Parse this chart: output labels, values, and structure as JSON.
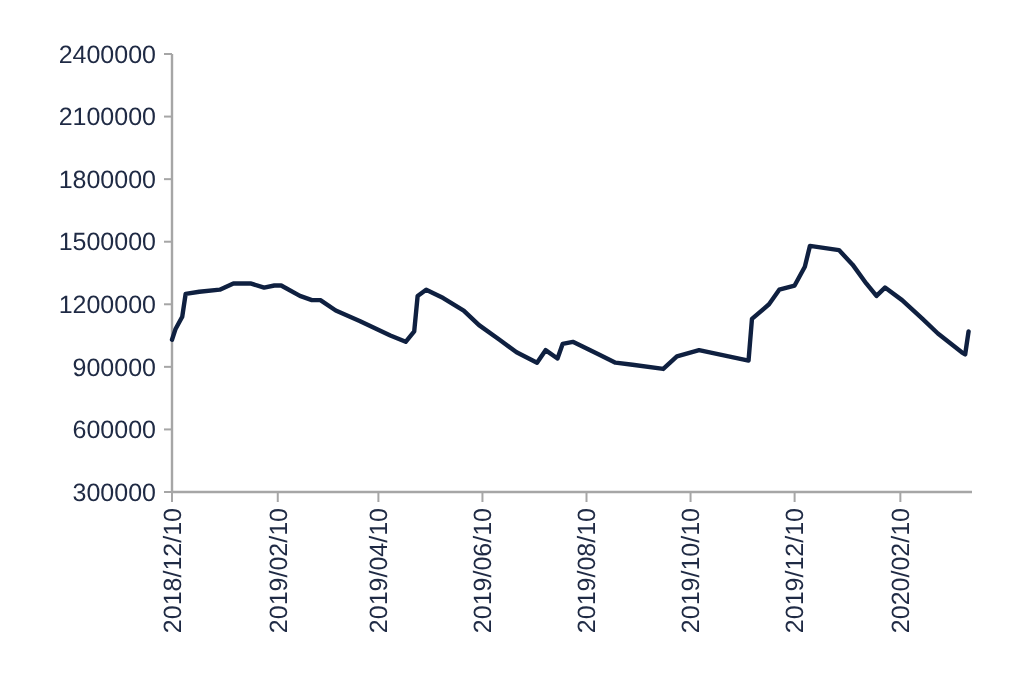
{
  "chart_data": {
    "type": "line",
    "color": "#0f2040",
    "x": [
      "2018-12-10",
      "2018-12-12",
      "2018-12-16",
      "2018-12-18",
      "2018-12-26",
      "2019-01-07",
      "2019-01-15",
      "2019-01-25",
      "2019-02-02",
      "2019-02-08",
      "2019-02-12",
      "2019-02-23",
      "2019-03-02",
      "2019-03-07",
      "2019-03-16",
      "2019-03-30",
      "2019-04-17",
      "2019-04-26",
      "2019-05-01",
      "2019-05-03",
      "2019-05-08",
      "2019-05-18",
      "2019-05-30",
      "2019-06-08",
      "2019-06-20",
      "2019-06-30",
      "2019-07-12",
      "2019-07-17",
      "2019-07-24",
      "2019-07-27",
      "2019-08-02",
      "2019-08-17",
      "2019-08-27",
      "2019-09-06",
      "2019-09-24",
      "2019-10-02",
      "2019-10-15",
      "2019-11-13",
      "2019-11-15",
      "2019-11-25",
      "2019-12-01",
      "2019-12-10",
      "2019-12-16",
      "2019-12-19",
      "2020-01-05",
      "2020-01-13",
      "2020-01-21",
      "2020-01-27",
      "2020-02-01",
      "2020-02-11",
      "2020-02-23",
      "2020-03-03",
      "2020-03-17",
      "2020-03-19",
      "2020-03-21"
    ],
    "values": [
      1030000,
      1080000,
      1140000,
      1250000,
      1260000,
      1270000,
      1300000,
      1300000,
      1280000,
      1290000,
      1290000,
      1240000,
      1220000,
      1220000,
      1170000,
      1120000,
      1050000,
      1020000,
      1070000,
      1240000,
      1270000,
      1230000,
      1170000,
      1100000,
      1030000,
      970000,
      920000,
      980000,
      940000,
      1010000,
      1020000,
      960000,
      920000,
      910000,
      890000,
      950000,
      980000,
      930000,
      1130000,
      1200000,
      1270000,
      1290000,
      1380000,
      1480000,
      1460000,
      1390000,
      1300000,
      1240000,
      1280000,
      1220000,
      1130000,
      1060000,
      970000,
      960000,
      1070000
    ],
    "xlim": [
      "2018-12-10",
      "2020-03-23"
    ],
    "xticks": [
      {
        "value": "2018-12-10",
        "label": "2018/12/10"
      },
      {
        "value": "2019-02-10",
        "label": "2019/02/10"
      },
      {
        "value": "2019-04-10",
        "label": "2019/04/10"
      },
      {
        "value": "2019-06-10",
        "label": "2019/06/10"
      },
      {
        "value": "2019-08-10",
        "label": "2019/08/10"
      },
      {
        "value": "2019-10-10",
        "label": "2019/10/10"
      },
      {
        "value": "2019-12-10",
        "label": "2019/12/10"
      },
      {
        "value": "2020-02-10",
        "label": "2020/02/10"
      }
    ],
    "ylim": [
      300000,
      2400000
    ],
    "yticks": [
      300000,
      600000,
      900000,
      1200000,
      1500000,
      1800000,
      2100000,
      2400000
    ],
    "grid": false,
    "marker": "none",
    "line_style": "solid"
  }
}
